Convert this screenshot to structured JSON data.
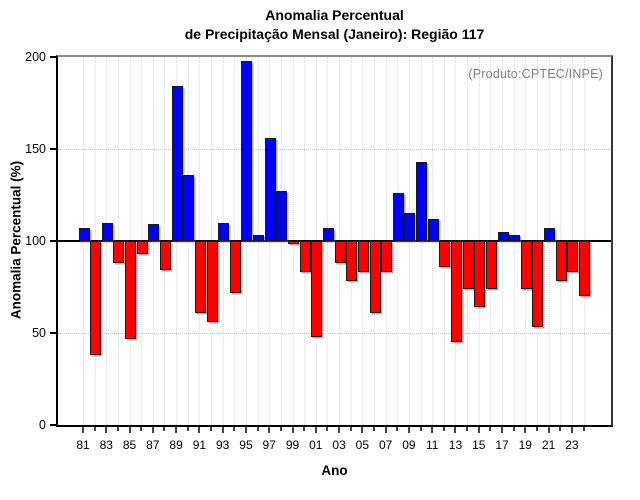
{
  "chart_data": {
    "type": "bar",
    "title": "Anomalia Percentual",
    "subtitle": "de Precipitação Mensal (Janeiro): Região 117",
    "xlabel": "Ano",
    "ylabel": "Anomalia Percentual (%)",
    "source_note": "(Produto:CPTEC/INPE)",
    "baseline": 100,
    "ylim": [
      0,
      200
    ],
    "yticks": [
      0,
      50,
      100,
      150,
      200
    ],
    "label_every_other_year_starting": "81",
    "x": [
      "81",
      "82",
      "83",
      "84",
      "85",
      "86",
      "87",
      "88",
      "89",
      "90",
      "91",
      "92",
      "93",
      "94",
      "95",
      "96",
      "97",
      "98",
      "99",
      "00",
      "01",
      "02",
      "03",
      "04",
      "05",
      "06",
      "07",
      "08",
      "09",
      "10",
      "11",
      "12",
      "13",
      "14",
      "15",
      "16",
      "17",
      "18",
      "19",
      "20",
      "21",
      "22",
      "23",
      "24"
    ],
    "values": [
      107,
      38,
      110,
      88,
      47,
      93,
      109,
      84,
      184,
      136,
      61,
      56,
      110,
      72,
      198,
      103,
      156,
      127,
      99,
      83,
      48,
      107,
      88,
      78,
      83,
      61,
      83,
      126,
      115,
      143,
      112,
      86,
      45,
      74,
      64,
      74,
      105,
      103,
      74,
      53,
      107,
      78,
      83,
      70
    ],
    "colors": {
      "above_baseline": "#0000ff",
      "below_baseline": "#ff0000",
      "baseline_line": "#000000",
      "grid": "#d4d4d4",
      "note_text": "#808080"
    },
    "legend": "none",
    "grid": "dotted horizontal at 50 and 150, dotted vertical at every year"
  }
}
